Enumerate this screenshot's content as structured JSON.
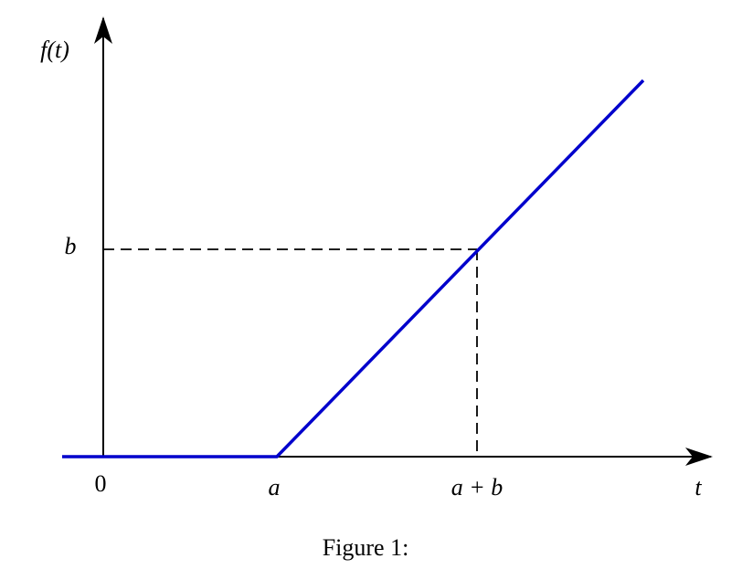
{
  "axes": {
    "y_label": "f(t)",
    "x_label": "t"
  },
  "labels": {
    "y": [
      "b"
    ],
    "x": [
      "0",
      "a",
      "a + b"
    ]
  },
  "caption": "Figure 1:"
}
